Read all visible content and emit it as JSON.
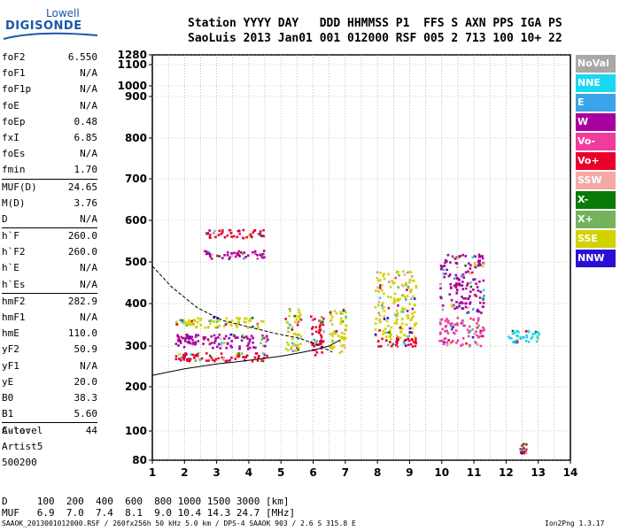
{
  "logo": {
    "brand": "Lowell",
    "product": "DIGISONDE"
  },
  "header": {
    "line1": "Station YYYY DAY   DDD HHMMSS P1  FFS S AXN PPS IGA PS",
    "line2": "SaoLuis 2013 Jan01 001 012000 RSF 005 2 713 100 10+ 22"
  },
  "params": [
    {
      "label": "foF2",
      "value": "6.550"
    },
    {
      "label": "foF1",
      "value": "N/A"
    },
    {
      "label": "foF1p",
      "value": "N/A"
    },
    {
      "label": "foE",
      "value": "N/A"
    },
    {
      "label": "foEp",
      "value": "0.48"
    },
    {
      "label": "fxI",
      "value": "6.85"
    },
    {
      "label": "foEs",
      "value": "N/A"
    },
    {
      "label": "fmin",
      "value": "1.70"
    },
    {
      "label": "MUF(D)",
      "value": "24.65"
    },
    {
      "label": "M(D)",
      "value": "3.76"
    },
    {
      "label": "D",
      "value": "N/A"
    },
    {
      "label": "h`F",
      "value": "260.0"
    },
    {
      "label": "h`F2",
      "value": "260.0"
    },
    {
      "label": "h`E",
      "value": "N/A"
    },
    {
      "label": "h`Es",
      "value": "N/A"
    },
    {
      "label": "hmF2",
      "value": "282.9"
    },
    {
      "label": "hmF1",
      "value": "N/A"
    },
    {
      "label": "hmE",
      "value": "110.0"
    },
    {
      "label": "yF2",
      "value": "50.9"
    },
    {
      "label": "yF1",
      "value": "N/A"
    },
    {
      "label": "yE",
      "value": "20.0"
    },
    {
      "label": "B0",
      "value": "38.3"
    },
    {
      "label": "B1",
      "value": "5.60"
    },
    {
      "label": "C-level",
      "value": "44"
    }
  ],
  "auto": {
    "line1": "Auto:",
    "line2": "Artist5",
    "line3": "500200"
  },
  "legend": [
    {
      "label": "NoVal",
      "color": "#a8a8a8"
    },
    {
      "label": "NNE",
      "color": "#19d8f0"
    },
    {
      "label": "E",
      "color": "#3ba3e8"
    },
    {
      "label": "W",
      "color": "#a8009e"
    },
    {
      "label": "Vo-",
      "color": "#f03c9c"
    },
    {
      "label": "Vo+",
      "color": "#e8002a"
    },
    {
      "label": "SSW",
      "color": "#f4a9a4"
    },
    {
      "label": "X-",
      "color": "#0a7a0a"
    },
    {
      "label": "X+",
      "color": "#74b35b"
    },
    {
      "label": "SSE",
      "color": "#d2d200"
    },
    {
      "label": "NNW",
      "color": "#2a10d4"
    }
  ],
  "dtable": {
    "row1": "D     100  200  400  600  800 1000 1500 3000 [km]",
    "row2": "MUF   6.9  7.0  7.4  8.1  9.0 10.4 14.3 24.7 [MHz]"
  },
  "footer": {
    "left": "SAAOK_2013001012000.RSF / 260fx256h 50 kHz 5.0 km / DPS-4 SAAOK 903 / 2.6 S 315.8 E",
    "right": "Ion2Png 1.3.17"
  },
  "chart_data": {
    "type": "scatter",
    "title": "",
    "xlabel": "",
    "ylabel": "",
    "xlim": [
      1,
      14
    ],
    "ylim": [
      80,
      1280
    ],
    "x_ticks": [
      1,
      2,
      3,
      4,
      5,
      6,
      7,
      8,
      9,
      10,
      11,
      12,
      13,
      14
    ],
    "y_ticks": [
      80,
      100,
      200,
      300,
      400,
      500,
      600,
      700,
      800,
      900,
      1000,
      1100,
      1280
    ],
    "y_scale": "nonlinear",
    "grid": true,
    "series": [
      {
        "x": [
          1.0,
          1.5,
          2.0,
          2.5,
          3.0,
          3.5,
          4.0,
          4.5,
          5.0,
          5.5,
          6.0,
          6.5,
          6.85
        ],
        "y": [
          228,
          236,
          244,
          250,
          256,
          260,
          265,
          270,
          275,
          282,
          290,
          300,
          315
        ]
      },
      {
        "x": [
          1.0,
          1.6,
          2.4,
          3.2,
          4.0,
          4.8,
          5.6,
          6.2,
          6.6
        ],
        "y": [
          490,
          440,
          390,
          360,
          345,
          330,
          318,
          300,
          285
        ]
      }
    ],
    "scatter_bands": [
      {
        "x": [
          1.7,
          2.3
        ],
        "y": [
          265,
          285
        ],
        "color": "#e8002a"
      },
      {
        "x": [
          1.7,
          2.3
        ],
        "y": [
          300,
          330
        ],
        "color": "#a8009e"
      },
      {
        "x": [
          1.7,
          2.3
        ],
        "y": [
          350,
          365
        ],
        "color": "#d2d200"
      },
      {
        "x": [
          2.3,
          4.6
        ],
        "y": [
          265,
          285
        ],
        "color": "#e8002a"
      },
      {
        "x": [
          2.3,
          4.6
        ],
        "y": [
          295,
          330
        ],
        "color": "#a8009e"
      },
      {
        "x": [
          2.3,
          4.6
        ],
        "y": [
          345,
          370
        ],
        "color": "#d2d200"
      },
      {
        "x": [
          2.6,
          4.5
        ],
        "y": [
          510,
          530
        ],
        "color": "#a8009e"
      },
      {
        "x": [
          2.6,
          4.5
        ],
        "y": [
          560,
          580
        ],
        "color": "#e8002a"
      },
      {
        "x": [
          5.1,
          5.6
        ],
        "y": [
          290,
          390
        ],
        "color": "#d2d200"
      },
      {
        "x": [
          5.9,
          6.3
        ],
        "y": [
          280,
          380
        ],
        "color": "#e8002a"
      },
      {
        "x": [
          6.5,
          7.0
        ],
        "y": [
          285,
          390
        ],
        "color": "#d2d200"
      },
      {
        "x": [
          7.9,
          9.2
        ],
        "y": [
          320,
          480
        ],
        "color": "#d2d200"
      },
      {
        "x": [
          7.9,
          9.2
        ],
        "y": [
          300,
          320
        ],
        "color": "#e8002a"
      },
      {
        "x": [
          9.9,
          11.3
        ],
        "y": [
          380,
          520
        ],
        "color": "#a8009e"
      },
      {
        "x": [
          9.9,
          11.3
        ],
        "y": [
          300,
          370
        ],
        "color": "#f03c9c"
      },
      {
        "x": [
          12.0,
          13.0
        ],
        "y": [
          310,
          340
        ],
        "color": "#19d8f0"
      },
      {
        "x": [
          12.4,
          12.6
        ],
        "y": [
          85,
          92
        ],
        "color": "#e8002a"
      }
    ]
  }
}
